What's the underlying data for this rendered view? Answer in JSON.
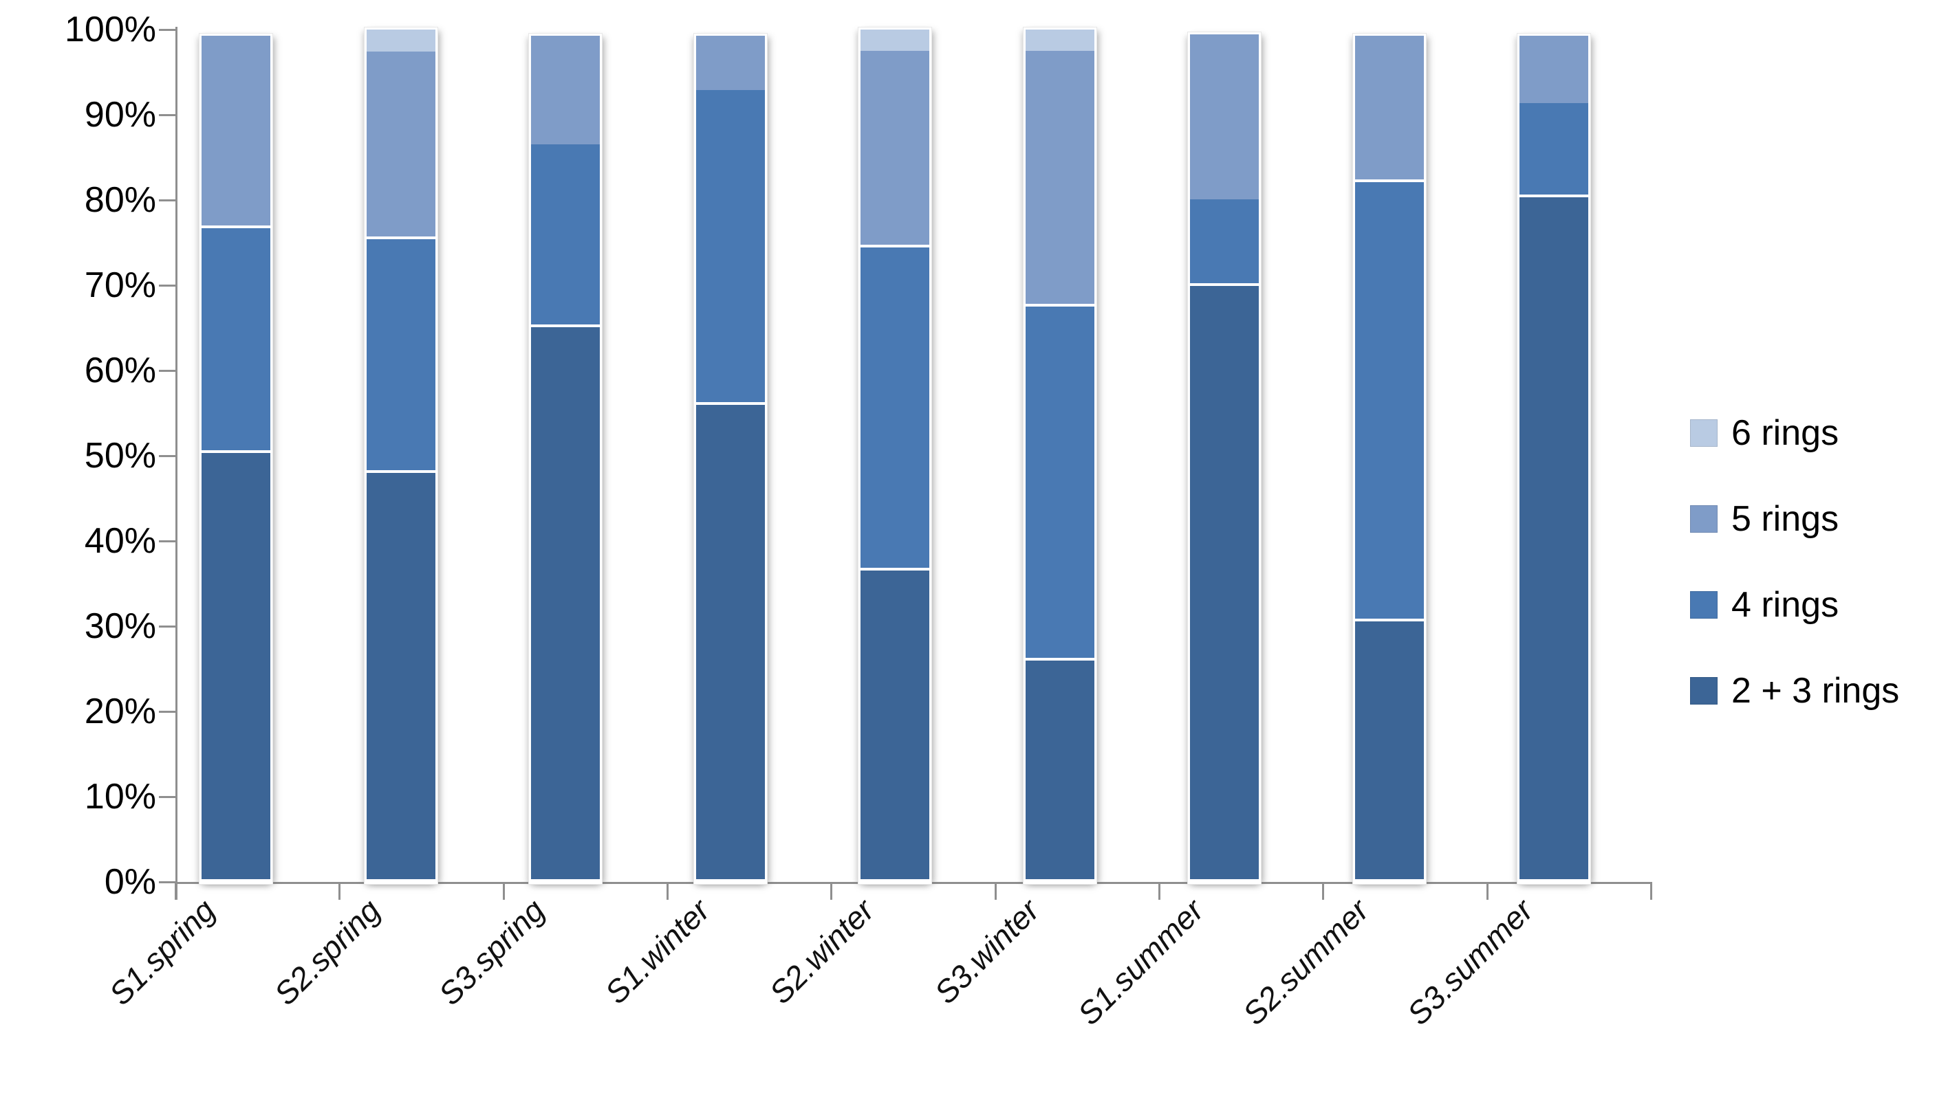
{
  "chart_data": {
    "type": "bar",
    "stacked": true,
    "percent_axis": true,
    "title": "",
    "xlabel": "",
    "ylabel": "",
    "ylim": [
      0,
      100
    ],
    "gridlines": false,
    "legend_position": "right",
    "axis_color": "#8f8f8f",
    "categories": [
      "S1.spring",
      "S2.spring",
      "S3.spring",
      "S1.winter",
      "S2.winter",
      "S3.winter",
      "S1.summer",
      "S2.summer",
      "S3.summer"
    ],
    "y_tick_labels": [
      "100%",
      "90%",
      "80%",
      "70%",
      "60%",
      "50%",
      "40%",
      "30%",
      "20%",
      "10%",
      "0%"
    ],
    "series": [
      {
        "name": "6 rings",
        "color": "#b9cbe3",
        "values": [
          0,
          2.6,
          0,
          0,
          2.5,
          2.5,
          0,
          0,
          0
        ]
      },
      {
        "name": "5 rings",
        "color": "#7f9cc8",
        "values": [
          22.6,
          22.0,
          12.8,
          6.4,
          23.1,
          30.0,
          19.3,
          17.2,
          7.9
        ]
      },
      {
        "name": "4 rings",
        "color": "#4979b3",
        "values": [
          26.4,
          27.4,
          21.4,
          36.9,
          37.9,
          41.5,
          10.2,
          51.5,
          11.1
        ]
      },
      {
        "name": "2 + 3 rings",
        "color": "#3c6596",
        "values": [
          50.3,
          48.0,
          65.1,
          56.0,
          36.5,
          26.0,
          69.9,
          30.6,
          80.3
        ]
      }
    ]
  }
}
